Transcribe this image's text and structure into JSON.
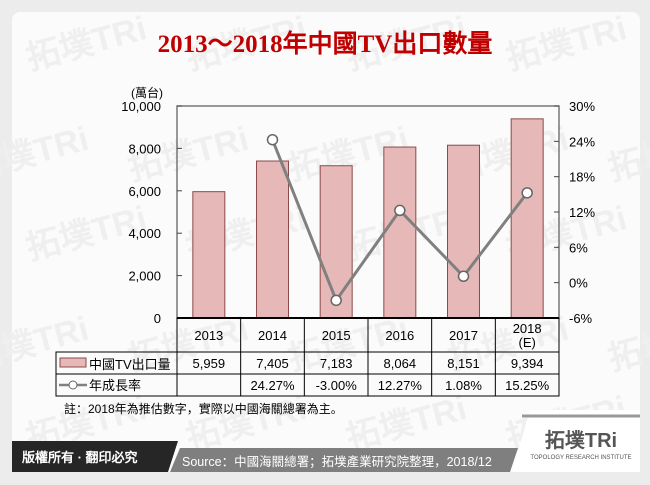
{
  "title": "2013～2018年中國TV出口數量",
  "unit_label": "(萬台)",
  "note": "註：2018年為推估數字，實際以中國海關總署為主。",
  "footer": {
    "copyright": "版權所有 · 翻印必究",
    "source": "Source：中國海關總署；拓墣產業研究院整理，2018/12",
    "logo_text": "拓墣TRi",
    "logo_subtext": "TOPOLOGY RESEARCH INSTITUTE"
  },
  "watermark": "拓墣TRi",
  "colors": {
    "title": "#c00000",
    "bar_fill": "#e6b8b7",
    "bar_stroke": "#8c4a4a",
    "line": "#808080",
    "footer_dark": "#262626",
    "footer_gray": "#7f7f7f"
  },
  "chart_data": {
    "type": "bar+line",
    "categories": [
      "2013",
      "2014",
      "2015",
      "2016",
      "2017",
      "2018\n(E)"
    ],
    "series": [
      {
        "name": "中國TV出口量",
        "type": "bar",
        "axis": "left",
        "values": [
          5959,
          7405,
          7183,
          8064,
          8151,
          9394
        ],
        "labels": [
          "5,959",
          "7,405",
          "7,183",
          "8,064",
          "8,151",
          "9,394"
        ]
      },
      {
        "name": "年成長率",
        "type": "line",
        "axis": "right",
        "values": [
          null,
          24.27,
          -3.0,
          12.27,
          1.08,
          15.25
        ],
        "labels": [
          "",
          "24.27%",
          "-3.00%",
          "12.27%",
          "1.08%",
          "15.25%"
        ]
      }
    ],
    "y_left": {
      "range": [
        0,
        10000
      ],
      "ticks": [
        "0",
        "2,000",
        "4,000",
        "6,000",
        "8,000",
        "10,000"
      ]
    },
    "y_right": {
      "range": [
        -6,
        30
      ],
      "ticks": [
        "-6%",
        "0%",
        "6%",
        "12%",
        "18%",
        "24%",
        "30%"
      ]
    },
    "legend": "data-table",
    "grid": false
  }
}
